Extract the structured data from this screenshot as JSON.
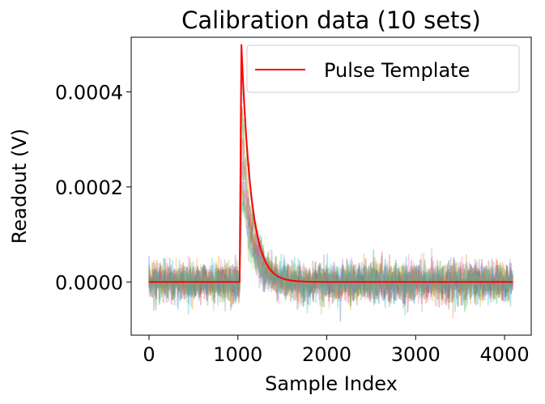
{
  "chart_data": {
    "type": "line",
    "title": "Calibration data (10 sets)",
    "xlabel": "Sample Index",
    "ylabel": "Readout (V)",
    "xlim": [
      -200,
      4300
    ],
    "ylim": [
      -0.000112,
      0.000515
    ],
    "x_ticks": [
      0,
      1000,
      2000,
      3000,
      4000
    ],
    "x_tick_labels": [
      "0",
      "1000",
      "2000",
      "3000",
      "4000"
    ],
    "y_ticks": [
      0.0,
      0.0002,
      0.0004
    ],
    "y_tick_labels": [
      "0.0000",
      "0.0002",
      "0.0004"
    ],
    "grid": false,
    "legend": {
      "position": "top-right",
      "entries": [
        "Pulse Template"
      ]
    },
    "template": {
      "name": "Pulse Template",
      "color": "#ff0000",
      "pulse_onset": 1020,
      "peak_x": 1040,
      "peak_value": 0.0005,
      "decay_constant_samples": 110,
      "x_range": [
        0,
        4095
      ]
    },
    "calibration_sets": {
      "count": 10,
      "samples": 4096,
      "noise_sigma": 2e-05,
      "peak_x": 1040,
      "peak_values": [
        0.00048,
        0.00038,
        0.00036,
        0.00031,
        0.00028,
        0.00026,
        0.00024,
        0.00022,
        0.0002,
        0.00018
      ],
      "colors": [
        "#1f77b4",
        "#ff7f0e",
        "#2ca02c",
        "#d62728",
        "#9467bd",
        "#8c564b",
        "#e377c2",
        "#7f7f7f",
        "#bcbd22",
        "#17becf"
      ]
    }
  }
}
